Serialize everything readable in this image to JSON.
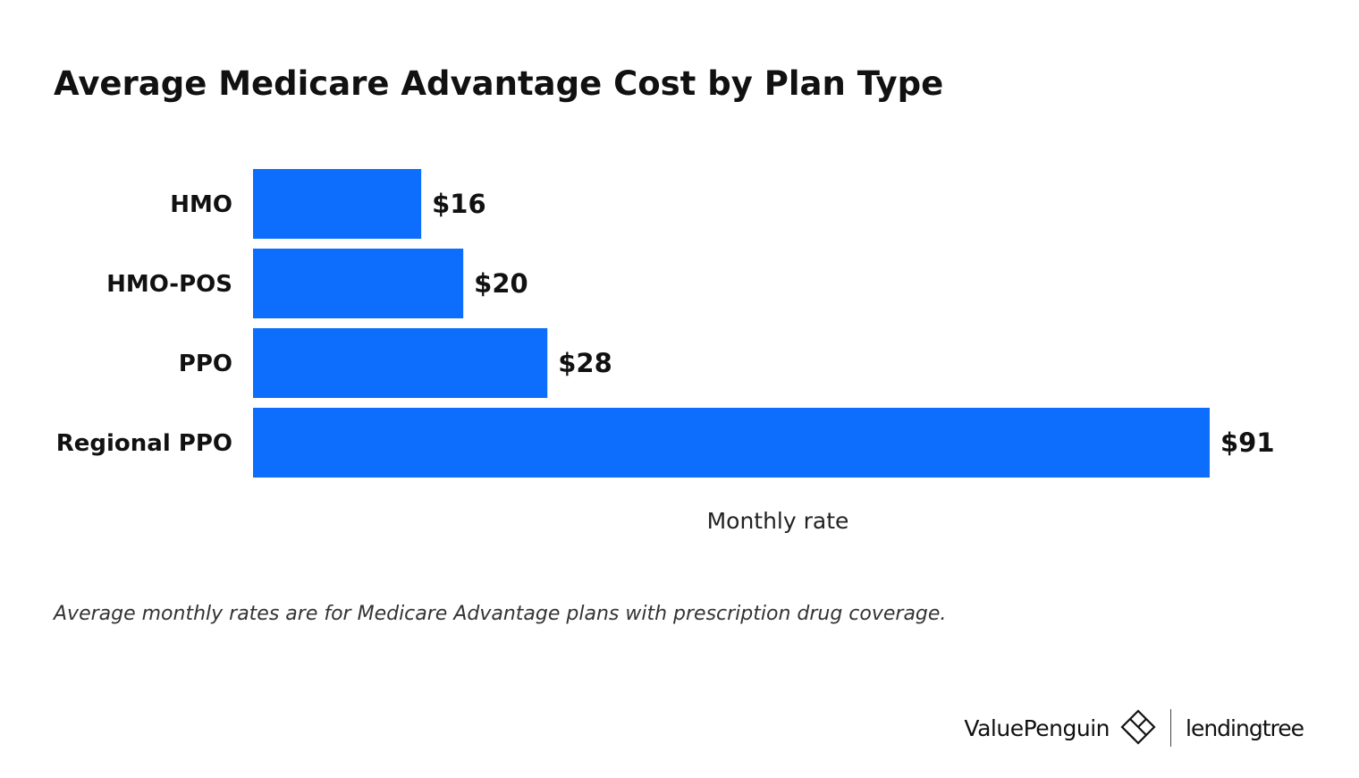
{
  "chart_data": {
    "type": "bar",
    "orientation": "horizontal",
    "title": "Average Medicare Advantage Cost by Plan Type",
    "categories": [
      "HMO",
      "HMO-POS",
      "PPO",
      "Regional PPO"
    ],
    "values": [
      16,
      20,
      28,
      91
    ],
    "value_labels": [
      "$16",
      "$20",
      "$28",
      "$91"
    ],
    "xlabel": "Monthly rate",
    "ylabel": "",
    "xlim": [
      0,
      91
    ],
    "grid": false,
    "bar_color": "#0d6efd"
  },
  "footnote": "Average monthly rates are for Medicare Advantage plans with prescription drug coverage.",
  "branding": {
    "valuepenguin": "ValuePenguin",
    "lendingtree": "lendingtree"
  }
}
